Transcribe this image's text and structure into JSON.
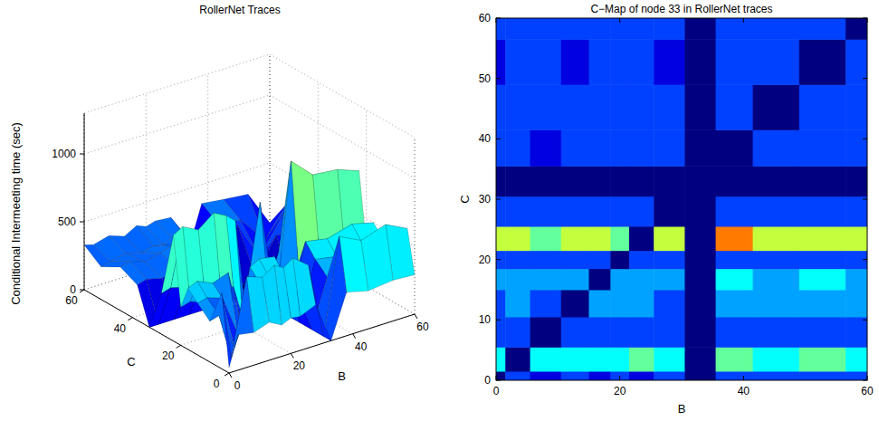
{
  "chart_data": [
    {
      "type": "surface",
      "title": "RollerNet Traces",
      "x_label": "B",
      "y_label": "C",
      "z_label": "Conditional Intermeeting time (sec)",
      "x": [
        0,
        3,
        8,
        13,
        17,
        20,
        23,
        28,
        33,
        38,
        45,
        53,
        60
      ],
      "y": [
        0,
        3,
        8,
        13,
        17,
        20,
        23,
        28,
        33,
        38,
        45,
        53,
        60
      ],
      "z": [
        [
          40,
          260,
          240,
          280,
          230,
          260,
          250,
          300,
          0,
          320,
          280,
          300,
          290
        ],
        [
          560,
          60,
          620,
          580,
          640,
          600,
          650,
          560,
          0,
          700,
          620,
          680,
          600
        ],
        [
          300,
          320,
          50,
          340,
          300,
          360,
          330,
          310,
          0,
          350,
          380,
          340,
          360
        ],
        [
          380,
          400,
          360,
          60,
          420,
          390,
          410,
          380,
          0,
          430,
          400,
          450,
          420
        ],
        [
          450,
          480,
          430,
          470,
          70,
          460,
          500,
          480,
          0,
          520,
          490,
          540,
          500
        ],
        [
          280,
          300,
          260,
          290,
          310,
          60,
          300,
          290,
          0,
          320,
          300,
          330,
          310
        ],
        [
          780,
          820,
          760,
          850,
          800,
          740,
          90,
          820,
          0,
          1050,
          900,
          880,
          820
        ],
        [
          300,
          320,
          290,
          330,
          310,
          300,
          320,
          60,
          0,
          340,
          330,
          350,
          320
        ],
        [
          0,
          0,
          0,
          0,
          0,
          0,
          0,
          0,
          0,
          0,
          0,
          0,
          0
        ],
        [
          260,
          280,
          250,
          290,
          270,
          300,
          280,
          260,
          0,
          60,
          300,
          280,
          290
        ],
        [
          320,
          340,
          300,
          330,
          360,
          310,
          340,
          320,
          0,
          350,
          70,
          340,
          330
        ],
        [
          240,
          260,
          280,
          250,
          270,
          260,
          290,
          250,
          0,
          280,
          260,
          60,
          270
        ],
        [
          330,
          310,
          340,
          300,
          350,
          320,
          340,
          330,
          0,
          360,
          340,
          320,
          60
        ]
      ],
      "xlim": [
        0,
        60
      ],
      "ylim": [
        0,
        60
      ],
      "zlim": [
        0,
        1300
      ],
      "xticks": [
        0,
        20,
        40,
        60
      ],
      "yticks": [
        0,
        20,
        40,
        60
      ],
      "zticks": [
        0,
        500,
        1000
      ],
      "grid": true
    },
    {
      "type": "contour",
      "title": "C−Map of node 33 in RollerNet traces",
      "x_label": "B",
      "y_label": "C",
      "x": [
        0,
        3,
        8,
        13,
        17,
        20,
        23,
        28,
        33,
        38,
        45,
        53,
        60
      ],
      "y": [
        0,
        3,
        8,
        13,
        17,
        20,
        23,
        28,
        33,
        38,
        45,
        53,
        60
      ],
      "z": [
        [
          40,
          260,
          240,
          280,
          230,
          260,
          250,
          300,
          0,
          320,
          280,
          300,
          290
        ],
        [
          560,
          60,
          620,
          580,
          640,
          600,
          650,
          560,
          0,
          700,
          620,
          680,
          600
        ],
        [
          300,
          320,
          50,
          340,
          300,
          360,
          330,
          310,
          0,
          350,
          380,
          340,
          360
        ],
        [
          380,
          400,
          360,
          60,
          420,
          390,
          410,
          380,
          0,
          430,
          400,
          450,
          420
        ],
        [
          450,
          480,
          430,
          470,
          70,
          460,
          500,
          480,
          0,
          520,
          490,
          540,
          500
        ],
        [
          280,
          300,
          260,
          290,
          310,
          60,
          300,
          290,
          0,
          320,
          300,
          330,
          310
        ],
        [
          780,
          820,
          760,
          850,
          800,
          740,
          90,
          820,
          0,
          1050,
          900,
          880,
          820
        ],
        [
          300,
          320,
          290,
          330,
          310,
          300,
          320,
          60,
          0,
          340,
          330,
          350,
          320
        ],
        [
          0,
          0,
          0,
          0,
          0,
          0,
          0,
          0,
          0,
          0,
          0,
          0,
          0
        ],
        [
          260,
          280,
          250,
          290,
          270,
          300,
          280,
          260,
          0,
          60,
          300,
          280,
          290
        ],
        [
          320,
          340,
          300,
          330,
          360,
          310,
          340,
          320,
          0,
          350,
          70,
          340,
          330
        ],
        [
          240,
          260,
          280,
          250,
          270,
          260,
          290,
          250,
          0,
          280,
          260,
          60,
          270
        ],
        [
          330,
          310,
          340,
          300,
          350,
          320,
          340,
          330,
          0,
          360,
          340,
          320,
          60
        ]
      ],
      "xlim": [
        0,
        60
      ],
      "ylim": [
        0,
        60
      ],
      "clim": [
        0,
        1300
      ],
      "xticks": [
        0,
        20,
        40,
        60
      ],
      "yticks": [
        0,
        10,
        20,
        30,
        40,
        50,
        60
      ]
    }
  ]
}
